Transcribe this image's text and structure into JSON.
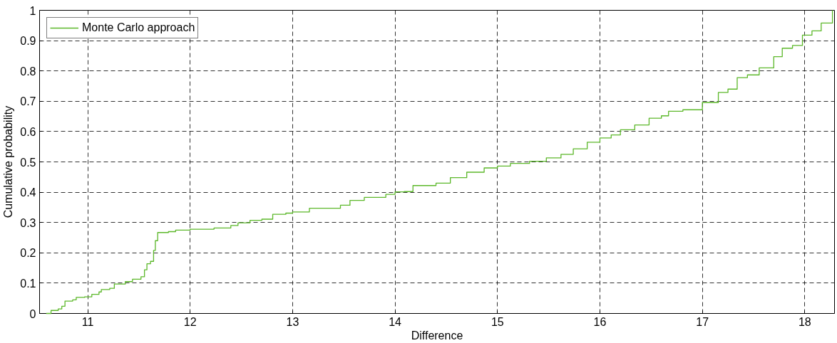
{
  "chart_data": {
    "type": "step",
    "xlabel": "Difference",
    "ylabel": "Cumulative probability",
    "xlim": [
      10.53,
      18.29
    ],
    "ylim": [
      0,
      1
    ],
    "xticks": [
      11,
      12,
      13,
      14,
      15,
      16,
      17,
      18
    ],
    "yticks": [
      0,
      0.1,
      0.2,
      0.3,
      0.4,
      0.5,
      0.6,
      0.7,
      0.8,
      0.9,
      1
    ],
    "grid": true,
    "legend": "top left",
    "line_style": "solid",
    "marker": "none",
    "series": [
      {
        "name": "Monte Carlo approach",
        "color": "#5cb82a",
        "x": [
          10.595,
          10.642,
          10.712,
          10.747,
          10.778,
          10.853,
          10.888,
          10.97,
          11.04,
          11.11,
          11.133,
          11.215,
          11.26,
          11.367,
          11.437,
          11.52,
          11.554,
          11.578,
          11.613,
          11.643,
          11.66,
          11.683,
          11.788,
          11.858,
          12.0,
          12.233,
          12.397,
          12.467,
          12.584,
          12.7,
          12.806,
          12.934,
          13.0,
          13.164,
          13.467,
          13.56,
          13.7,
          13.91,
          14.0,
          14.09,
          14.175,
          14.4,
          14.54,
          14.7,
          14.87,
          15.0,
          15.126,
          15.313,
          15.477,
          15.62,
          15.74,
          15.876,
          16.0,
          16.11,
          16.2,
          16.34,
          16.48,
          16.6,
          16.67,
          16.81,
          17.0,
          17.156,
          17.25,
          17.34,
          17.44,
          17.555,
          17.697,
          17.78,
          17.88,
          17.977,
          18.07,
          18.16,
          18.27
        ],
        "values": [
          0,
          0.01,
          0.015,
          0.024,
          0.041,
          0.045,
          0.053,
          0.055,
          0.063,
          0.071,
          0.079,
          0.083,
          0.097,
          0.105,
          0.113,
          0.121,
          0.144,
          0.164,
          0.172,
          0.208,
          0.24,
          0.267,
          0.27,
          0.275,
          0.278,
          0.282,
          0.29,
          0.299,
          0.307,
          0.311,
          0.327,
          0.331,
          0.335,
          0.347,
          0.357,
          0.373,
          0.383,
          0.393,
          0.401,
          0.402,
          0.422,
          0.43,
          0.448,
          0.466,
          0.48,
          0.486,
          0.495,
          0.502,
          0.513,
          0.525,
          0.543,
          0.565,
          0.579,
          0.589,
          0.606,
          0.622,
          0.644,
          0.652,
          0.667,
          0.672,
          0.696,
          0.729,
          0.74,
          0.778,
          0.787,
          0.81,
          0.847,
          0.875,
          0.884,
          0.918,
          0.932,
          0.958,
          1.0
        ]
      }
    ]
  }
}
